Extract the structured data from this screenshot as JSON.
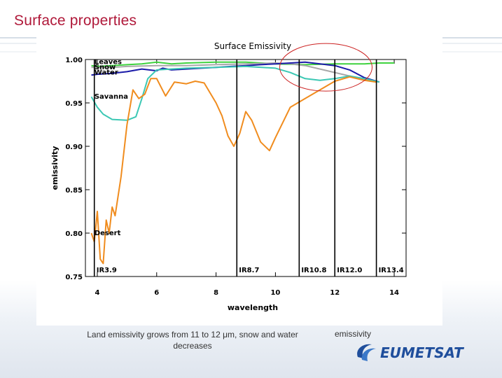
{
  "slide": {
    "title": "Surface properties",
    "caption_left": "Land emissivity grows from 11 to 12 μm, snow and water decreases",
    "caption_right": "emissivity",
    "logo_text": "EUMETSAT"
  },
  "colors": {
    "title": "#b0193a",
    "leaves": "#3fd23f",
    "snow": "#a8a8a8",
    "water": "#1a1aa8",
    "savanna": "#3cc8b4",
    "desert": "#f08c1e",
    "highlight": "#cc2222"
  },
  "chart_data": {
    "type": "line",
    "title": "Surface Emissivity",
    "xlabel": "wavelength",
    "ylabel": "emissivity",
    "xlim": [
      3.6,
      14.4
    ],
    "ylim": [
      0.75,
      1.0
    ],
    "xticks": [
      4,
      6,
      8,
      10,
      12,
      14
    ],
    "xtick_labels": [
      "4",
      "6",
      "8",
      "10",
      "12",
      "14"
    ],
    "yticks": [
      0.75,
      0.8,
      0.85,
      0.9,
      0.95,
      1.0
    ],
    "ytick_labels": [
      "0.75",
      "0.80",
      "0.85",
      "0.90",
      "0.95",
      "1.00"
    ],
    "channels": [
      {
        "label": "IR3.9",
        "x": 3.9
      },
      {
        "label": "IR8.7",
        "x": 8.7
      },
      {
        "label": "IR10.8",
        "x": 10.8
      },
      {
        "label": "IR12.0",
        "x": 12.0
      },
      {
        "label": "IR13.4",
        "x": 13.4
      }
    ],
    "series": [
      {
        "name": "Leaves",
        "color_key": "leaves",
        "label_at": [
          3.95,
          0.998
        ],
        "x": [
          3.8,
          4.0,
          4.5,
          5.0,
          5.5,
          6.0,
          6.5,
          7.0,
          8.0,
          9.0,
          10.0,
          11.0,
          12.0,
          13.0,
          13.5,
          14.0
        ],
        "y": [
          0.993,
          0.992,
          0.993,
          0.994,
          0.995,
          0.997,
          0.995,
          0.996,
          0.997,
          0.997,
          0.995,
          0.994,
          0.995,
          0.995,
          0.996,
          0.996
        ]
      },
      {
        "name": "Snow",
        "color_key": "snow",
        "label_at": [
          3.95,
          0.992
        ],
        "x": [
          3.8,
          4.5,
          5.0,
          6.0,
          7.0,
          8.0,
          9.0,
          10.0,
          10.5,
          11.0,
          11.5,
          12.0,
          12.5,
          13.0,
          13.5
        ],
        "y": [
          0.991,
          0.991,
          0.992,
          0.993,
          0.993,
          0.994,
          0.995,
          0.996,
          0.995,
          0.993,
          0.989,
          0.985,
          0.981,
          0.977,
          0.974
        ]
      },
      {
        "name": "Water",
        "color_key": "water",
        "label_at": [
          3.95,
          0.986
        ],
        "x": [
          3.8,
          4.0,
          4.5,
          5.0,
          5.5,
          6.0,
          6.2,
          6.5,
          7.0,
          7.5,
          8.0,
          8.5,
          9.0,
          9.5,
          10.0,
          10.5,
          11.0,
          11.5,
          12.0,
          12.5,
          13.0,
          13.5
        ],
        "y": [
          0.982,
          0.983,
          0.984,
          0.986,
          0.989,
          0.987,
          0.99,
          0.988,
          0.989,
          0.99,
          0.991,
          0.992,
          0.993,
          0.994,
          0.995,
          0.996,
          0.997,
          0.995,
          0.993,
          0.988,
          0.979,
          0.974
        ]
      },
      {
        "name": "Savanna",
        "color_key": "savanna",
        "label_at": [
          3.95,
          0.958
        ],
        "x": [
          3.8,
          4.0,
          4.2,
          4.5,
          5.0,
          5.3,
          5.5,
          5.7,
          6.0,
          6.5,
          7.0,
          8.0,
          9.0,
          10.0,
          10.5,
          11.0,
          11.5,
          12.0,
          12.5,
          13.0,
          13.5
        ],
        "y": [
          0.957,
          0.945,
          0.937,
          0.931,
          0.93,
          0.934,
          0.955,
          0.978,
          0.988,
          0.989,
          0.99,
          0.991,
          0.992,
          0.99,
          0.985,
          0.978,
          0.976,
          0.978,
          0.981,
          0.978,
          0.974
        ]
      },
      {
        "name": "Desert",
        "color_key": "desert",
        "label_at": [
          3.95,
          0.801
        ],
        "x": [
          3.8,
          3.9,
          4.0,
          4.1,
          4.2,
          4.3,
          4.4,
          4.5,
          4.6,
          4.8,
          5.0,
          5.2,
          5.4,
          5.6,
          5.8,
          6.0,
          6.3,
          6.6,
          7.0,
          7.3,
          7.6,
          8.0,
          8.2,
          8.4,
          8.6,
          8.8,
          9.0,
          9.2,
          9.5,
          9.8,
          10.0,
          10.5,
          11.0,
          11.5,
          12.0,
          12.5,
          13.0,
          13.4
        ],
        "y": [
          0.8,
          0.79,
          0.825,
          0.77,
          0.765,
          0.815,
          0.8,
          0.83,
          0.82,
          0.865,
          0.925,
          0.965,
          0.955,
          0.96,
          0.978,
          0.978,
          0.958,
          0.974,
          0.972,
          0.975,
          0.973,
          0.95,
          0.935,
          0.912,
          0.9,
          0.915,
          0.94,
          0.93,
          0.905,
          0.895,
          0.91,
          0.945,
          0.955,
          0.965,
          0.975,
          0.98,
          0.976,
          0.974
        ]
      }
    ]
  }
}
